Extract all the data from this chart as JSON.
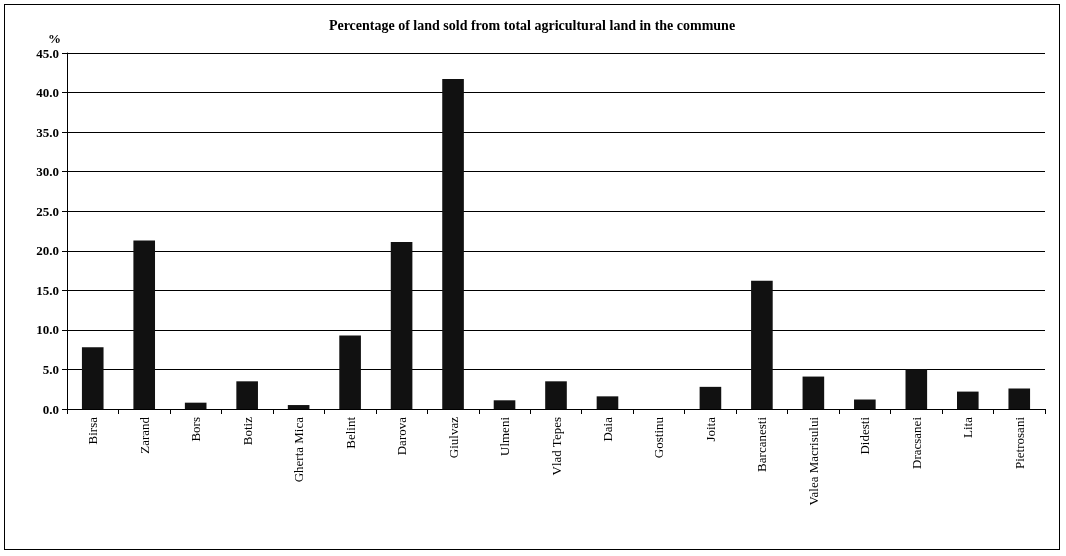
{
  "chart_data": {
    "type": "bar",
    "title": "Percentage of land sold from total agricultural land in the commune",
    "ylabel": "%",
    "categories": [
      "Birsa",
      "Zarand",
      "Bors",
      "Botiz",
      "Gherta Mica",
      "Belint",
      "Darova",
      "Giulvaz",
      "Ulmeni",
      "Vlad Tepes",
      "Daia",
      "Gostinu",
      "Joita",
      "Barcanesti",
      "Valea Macrisului",
      "Didesti",
      "Dracsanei",
      "Lita",
      "Pietrosani"
    ],
    "values": [
      7.8,
      21.3,
      0.8,
      3.5,
      0.5,
      9.3,
      21.1,
      41.7,
      1.1,
      3.5,
      1.6,
      0,
      2.8,
      16.2,
      4.1,
      1.2,
      5.0,
      2.2,
      2.6
    ],
    "color": "#111111",
    "ylim": [
      0,
      45
    ],
    "yticks": [
      {
        "value": 0,
        "label": "0.0"
      },
      {
        "value": 5,
        "label": "5.0"
      },
      {
        "value": 10,
        "label": "10.0"
      },
      {
        "value": 15,
        "label": "15.0"
      },
      {
        "value": 20,
        "label": "20.0"
      },
      {
        "value": 25,
        "label": "25.0"
      },
      {
        "value": 30,
        "label": "30.0"
      },
      {
        "value": 35,
        "label": "35.0"
      },
      {
        "value": 40,
        "label": "40.0"
      },
      {
        "value": 45,
        "label": "45.0"
      }
    ],
    "grid": "y"
  }
}
